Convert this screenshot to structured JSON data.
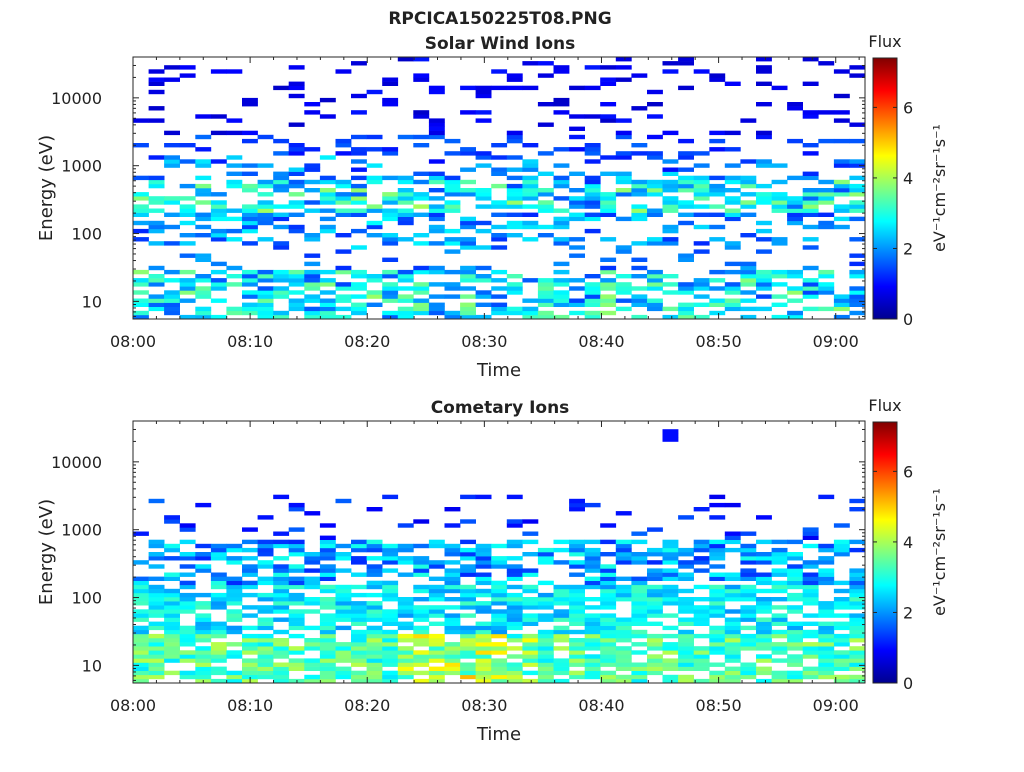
{
  "figure": {
    "title": "RPCICA150225T08.PNG"
  },
  "chart_data": [
    {
      "type": "heatmap",
      "title": "Solar Wind Ions",
      "xlabel": "Time",
      "ylabel": "Energy (eV)",
      "x_ticks": [
        "08:00",
        "08:10",
        "08:20",
        "08:30",
        "08:40",
        "08:50",
        "09:00"
      ],
      "y_ticks": [
        "10",
        "100",
        "1000",
        "10000"
      ],
      "y_scale": "log",
      "ylim": [
        5.5,
        40000
      ],
      "xlim_minutes": [
        0,
        62.5
      ],
      "colorbar": {
        "title": "Flux",
        "label": "eV⁻¹cm⁻²sr⁻¹s⁻¹",
        "ticks": [
          "0",
          "2",
          "4",
          "6"
        ],
        "range": [
          0,
          7.4
        ],
        "colormap": "jet"
      },
      "description_of_values": "log10 flux; sparse ~1 (dark blue) above 1 keV, 2-4 bands near 150-600 eV, 2-4 below 30 eV"
    },
    {
      "type": "heatmap",
      "title": "Cometary Ions",
      "xlabel": "Time",
      "ylabel": "Energy (eV)",
      "x_ticks": [
        "08:00",
        "08:10",
        "08:20",
        "08:30",
        "08:40",
        "08:50",
        "09:00"
      ],
      "y_ticks": [
        "10",
        "100",
        "1000",
        "10000"
      ],
      "y_scale": "log",
      "ylim": [
        5.5,
        40000
      ],
      "xlim_minutes": [
        0,
        62.5
      ],
      "colorbar": {
        "title": "Flux",
        "label": "eV⁻¹cm⁻²sr⁻¹s⁻¹",
        "ticks": [
          "0",
          "2",
          "4",
          "6"
        ],
        "range": [
          0,
          7.4
        ],
        "colormap": "jet"
      },
      "description_of_values": "log10 flux; peaks ~4.5-5.5 (yellow-orange) at 8-30 eV around 08:22-08:30, blue above 1 keV"
    }
  ]
}
